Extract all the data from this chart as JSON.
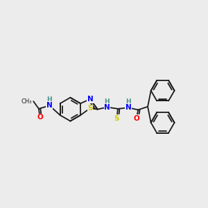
{
  "background_color": "#ececec",
  "bond_color": "#1a1a1a",
  "atom_colors": {
    "N": "#0000ff",
    "O": "#ff0000",
    "S": "#cccc00",
    "H": "#4a9090",
    "C": "#1a1a1a"
  },
  "figsize": [
    3.0,
    3.0
  ],
  "dpi": 100
}
